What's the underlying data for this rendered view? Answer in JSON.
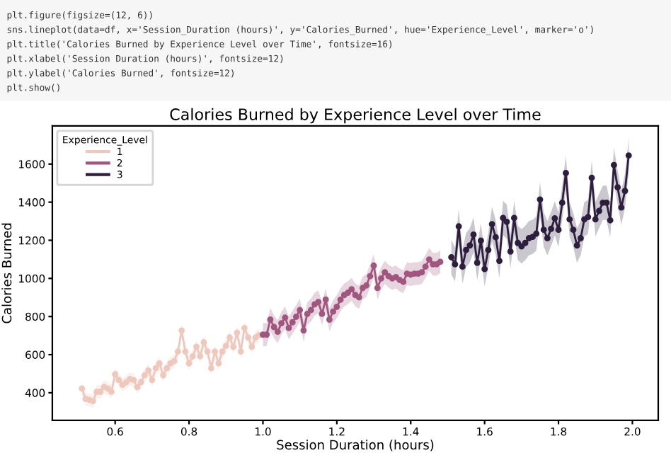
{
  "chart_data": {
    "type": "line",
    "title": "Calories Burned by Experience Level over Time",
    "xlabel": "Session Duration (hours)",
    "ylabel": "Calories Burned",
    "legend_title": "Experience_Level",
    "annotations": [
      "plt.figure(figsize=(12, 6))",
      "sns.lineplot(data=df, x='Session_Duration (hours)', y='Calories_Burned', hue='Experience_Level', marker='o')",
      "plt.title('Calories Burned by Experience Level over Time', fontsize=16)",
      "plt.xlabel('Session Duration (hours)', fontsize=12)",
      "plt.ylabel('Calories Burned', fontsize=12)",
      "plt.show()"
    ],
    "xlim": [
      0.43,
      2.07
    ],
    "ylim": [
      255,
      1800
    ],
    "xticks": [
      {
        "value": 0.6,
        "label": "0.6"
      },
      {
        "value": 0.8,
        "label": "0.8"
      },
      {
        "value": 1.0,
        "label": "1.0"
      },
      {
        "value": 1.2,
        "label": "1.2"
      },
      {
        "value": 1.4,
        "label": "1.4"
      },
      {
        "value": 1.6,
        "label": "1.6"
      },
      {
        "value": 1.8,
        "label": "1.8"
      },
      {
        "value": 2.0,
        "label": "2.0"
      }
    ],
    "yticks": [
      400,
      600,
      800,
      1000,
      1200,
      1400,
      1600
    ],
    "grid": false,
    "legend": "top left",
    "marker": "circle",
    "line_style": "solid",
    "series": [
      {
        "name": "1",
        "color": "#efc8bd",
        "x": [
          0.51,
          0.52,
          0.53,
          0.54,
          0.55,
          0.56,
          0.57,
          0.58,
          0.59,
          0.6,
          0.61,
          0.62,
          0.63,
          0.64,
          0.65,
          0.66,
          0.67,
          0.68,
          0.69,
          0.7,
          0.71,
          0.72,
          0.73,
          0.74,
          0.75,
          0.76,
          0.77,
          0.78,
          0.79,
          0.8,
          0.81,
          0.82,
          0.83,
          0.84,
          0.85,
          0.86,
          0.87,
          0.88,
          0.89,
          0.9,
          0.91,
          0.92,
          0.93,
          0.94,
          0.95,
          0.96,
          0.97,
          0.98,
          0.99
        ],
        "values": [
          422,
          368,
          363,
          356,
          405,
          405,
          430,
          422,
          405,
          497,
          467,
          442,
          455,
          472,
          467,
          430,
          455,
          492,
          517,
          467,
          529,
          554,
          492,
          529,
          554,
          566,
          616,
          727,
          616,
          554,
          591,
          641,
          591,
          665,
          616,
          529,
          616,
          554,
          616,
          646,
          690,
          641,
          715,
          616,
          740,
          690,
          641,
          690,
          703
        ],
        "lower": [
          387,
          333,
          328,
          321,
          370,
          370,
          395,
          387,
          370,
          462,
          432,
          407,
          420,
          437,
          432,
          395,
          420,
          457,
          482,
          432,
          494,
          519,
          457,
          494,
          519,
          531,
          581,
          692,
          581,
          519,
          556,
          606,
          556,
          630,
          581,
          494,
          581,
          519,
          581,
          611,
          655,
          606,
          680,
          581,
          705,
          655,
          606,
          655,
          668
        ],
        "upper": [
          457,
          403,
          398,
          391,
          440,
          440,
          465,
          457,
          440,
          532,
          502,
          477,
          490,
          507,
          502,
          465,
          490,
          527,
          552,
          502,
          564,
          589,
          527,
          564,
          589,
          601,
          651,
          762,
          651,
          589,
          626,
          676,
          626,
          700,
          651,
          564,
          651,
          589,
          651,
          681,
          725,
          676,
          750,
          651,
          775,
          725,
          676,
          725,
          738
        ]
      },
      {
        "name": "2",
        "color": "#a0577f",
        "x": [
          1.0,
          1.01,
          1.02,
          1.03,
          1.04,
          1.05,
          1.06,
          1.07,
          1.08,
          1.09,
          1.1,
          1.11,
          1.12,
          1.13,
          1.14,
          1.15,
          1.16,
          1.17,
          1.18,
          1.19,
          1.2,
          1.21,
          1.22,
          1.23,
          1.24,
          1.25,
          1.26,
          1.27,
          1.28,
          1.29,
          1.3,
          1.31,
          1.32,
          1.33,
          1.34,
          1.35,
          1.36,
          1.37,
          1.38,
          1.39,
          1.4,
          1.41,
          1.42,
          1.43,
          1.44,
          1.45,
          1.46,
          1.47,
          1.48
        ],
        "values": [
          705,
          705,
          784,
          745,
          720,
          765,
          794,
          740,
          770,
          799,
          834,
          727,
          814,
          834,
          864,
          876,
          814,
          889,
          784,
          826,
          851,
          888,
          913,
          925,
          943,
          913,
          901,
          950,
          963,
          1012,
          1067,
          950,
          1000,
          1032,
          1012,
          1000,
          1007,
          992,
          982,
          1025,
          1020,
          1025,
          1025,
          1032,
          1062,
          1099,
          1074,
          1074,
          1087
        ],
        "lower": [
          645,
          645,
          724,
          685,
          660,
          705,
          734,
          680,
          710,
          739,
          774,
          667,
          754,
          774,
          804,
          816,
          754,
          829,
          724,
          766,
          791,
          828,
          853,
          865,
          883,
          853,
          841,
          890,
          903,
          952,
          1007,
          890,
          940,
          972,
          952,
          940,
          947,
          932,
          922,
          965,
          960,
          965,
          965,
          972,
          1002,
          1039,
          1014,
          1014,
          1027
        ],
        "upper": [
          765,
          765,
          844,
          805,
          780,
          825,
          854,
          800,
          830,
          859,
          894,
          787,
          874,
          894,
          924,
          936,
          874,
          949,
          844,
          886,
          911,
          948,
          973,
          985,
          1003,
          973,
          961,
          1010,
          1023,
          1072,
          1127,
          1010,
          1060,
          1092,
          1072,
          1060,
          1067,
          1052,
          1042,
          1085,
          1080,
          1085,
          1085,
          1092,
          1122,
          1159,
          1134,
          1134,
          1147
        ]
      },
      {
        "name": "3",
        "color": "#2d1e3e",
        "x": [
          1.51,
          1.52,
          1.53,
          1.54,
          1.55,
          1.56,
          1.57,
          1.58,
          1.59,
          1.6,
          1.61,
          1.62,
          1.63,
          1.64,
          1.65,
          1.66,
          1.67,
          1.68,
          1.69,
          1.7,
          1.71,
          1.72,
          1.73,
          1.74,
          1.75,
          1.76,
          1.77,
          1.78,
          1.79,
          1.8,
          1.81,
          1.82,
          1.83,
          1.84,
          1.85,
          1.86,
          1.87,
          1.88,
          1.89,
          1.9,
          1.91,
          1.92,
          1.93,
          1.94,
          1.95,
          1.96,
          1.97,
          1.98,
          1.99
        ],
        "values": [
          1111,
          1074,
          1273,
          1062,
          1149,
          1173,
          1230,
          1082,
          1198,
          1049,
          1149,
          1285,
          1216,
          1092,
          1317,
          1297,
          1141,
          1317,
          1186,
          1168,
          1186,
          1211,
          1218,
          1235,
          1414,
          1255,
          1211,
          1260,
          1315,
          1255,
          1397,
          1553,
          1310,
          1255,
          1173,
          1211,
          1310,
          1322,
          1528,
          1310,
          1354,
          1397,
          1397,
          1305,
          1595,
          1478,
          1372,
          1459,
          1645
        ],
        "lower": [
          1021,
          984,
          1183,
          972,
          1059,
          1083,
          1140,
          992,
          1108,
          959,
          1059,
          1195,
          1126,
          1002,
          1227,
          1207,
          1051,
          1227,
          1096,
          1078,
          1096,
          1121,
          1128,
          1145,
          1324,
          1165,
          1121,
          1170,
          1225,
          1165,
          1307,
          1463,
          1220,
          1165,
          1083,
          1121,
          1220,
          1232,
          1438,
          1220,
          1264,
          1307,
          1307,
          1215,
          1505,
          1388,
          1282,
          1369,
          1555
        ],
        "upper": [
          1201,
          1164,
          1363,
          1152,
          1239,
          1263,
          1320,
          1172,
          1288,
          1139,
          1239,
          1375,
          1306,
          1182,
          1407,
          1387,
          1231,
          1407,
          1276,
          1258,
          1276,
          1301,
          1308,
          1325,
          1504,
          1345,
          1301,
          1350,
          1405,
          1345,
          1487,
          1643,
          1400,
          1345,
          1263,
          1301,
          1400,
          1412,
          1618,
          1400,
          1444,
          1487,
          1487,
          1395,
          1685,
          1568,
          1462,
          1549,
          1735
        ]
      }
    ]
  }
}
